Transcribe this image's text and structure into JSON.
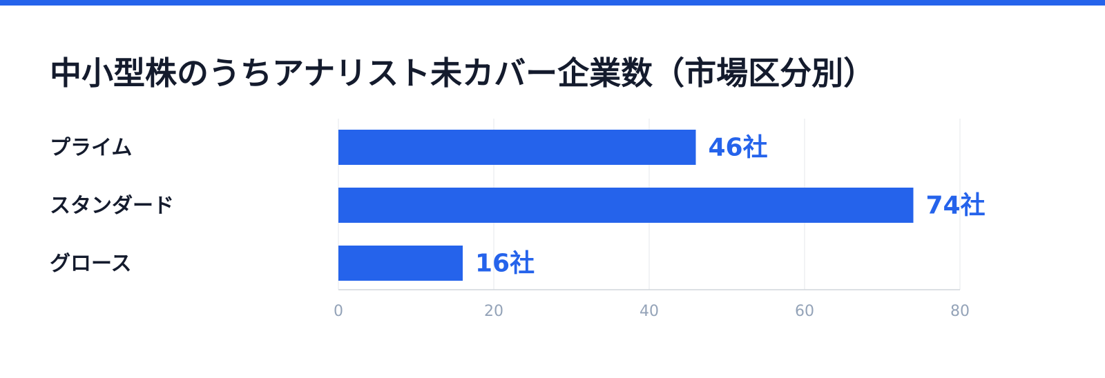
{
  "chart_data": {
    "type": "bar",
    "orientation": "horizontal",
    "title": "中小型株のうちアナリスト未カバー企業数（市場区分別）",
    "categories": [
      "プライム",
      "スタンダード",
      "グロース"
    ],
    "values": [
      46,
      74,
      16
    ],
    "value_labels": [
      "46社",
      "74社",
      "16社"
    ],
    "color": "#2563eb",
    "xlim": [
      0,
      80
    ],
    "xticks": [
      0,
      20,
      40,
      60,
      80
    ],
    "grid": true
  }
}
